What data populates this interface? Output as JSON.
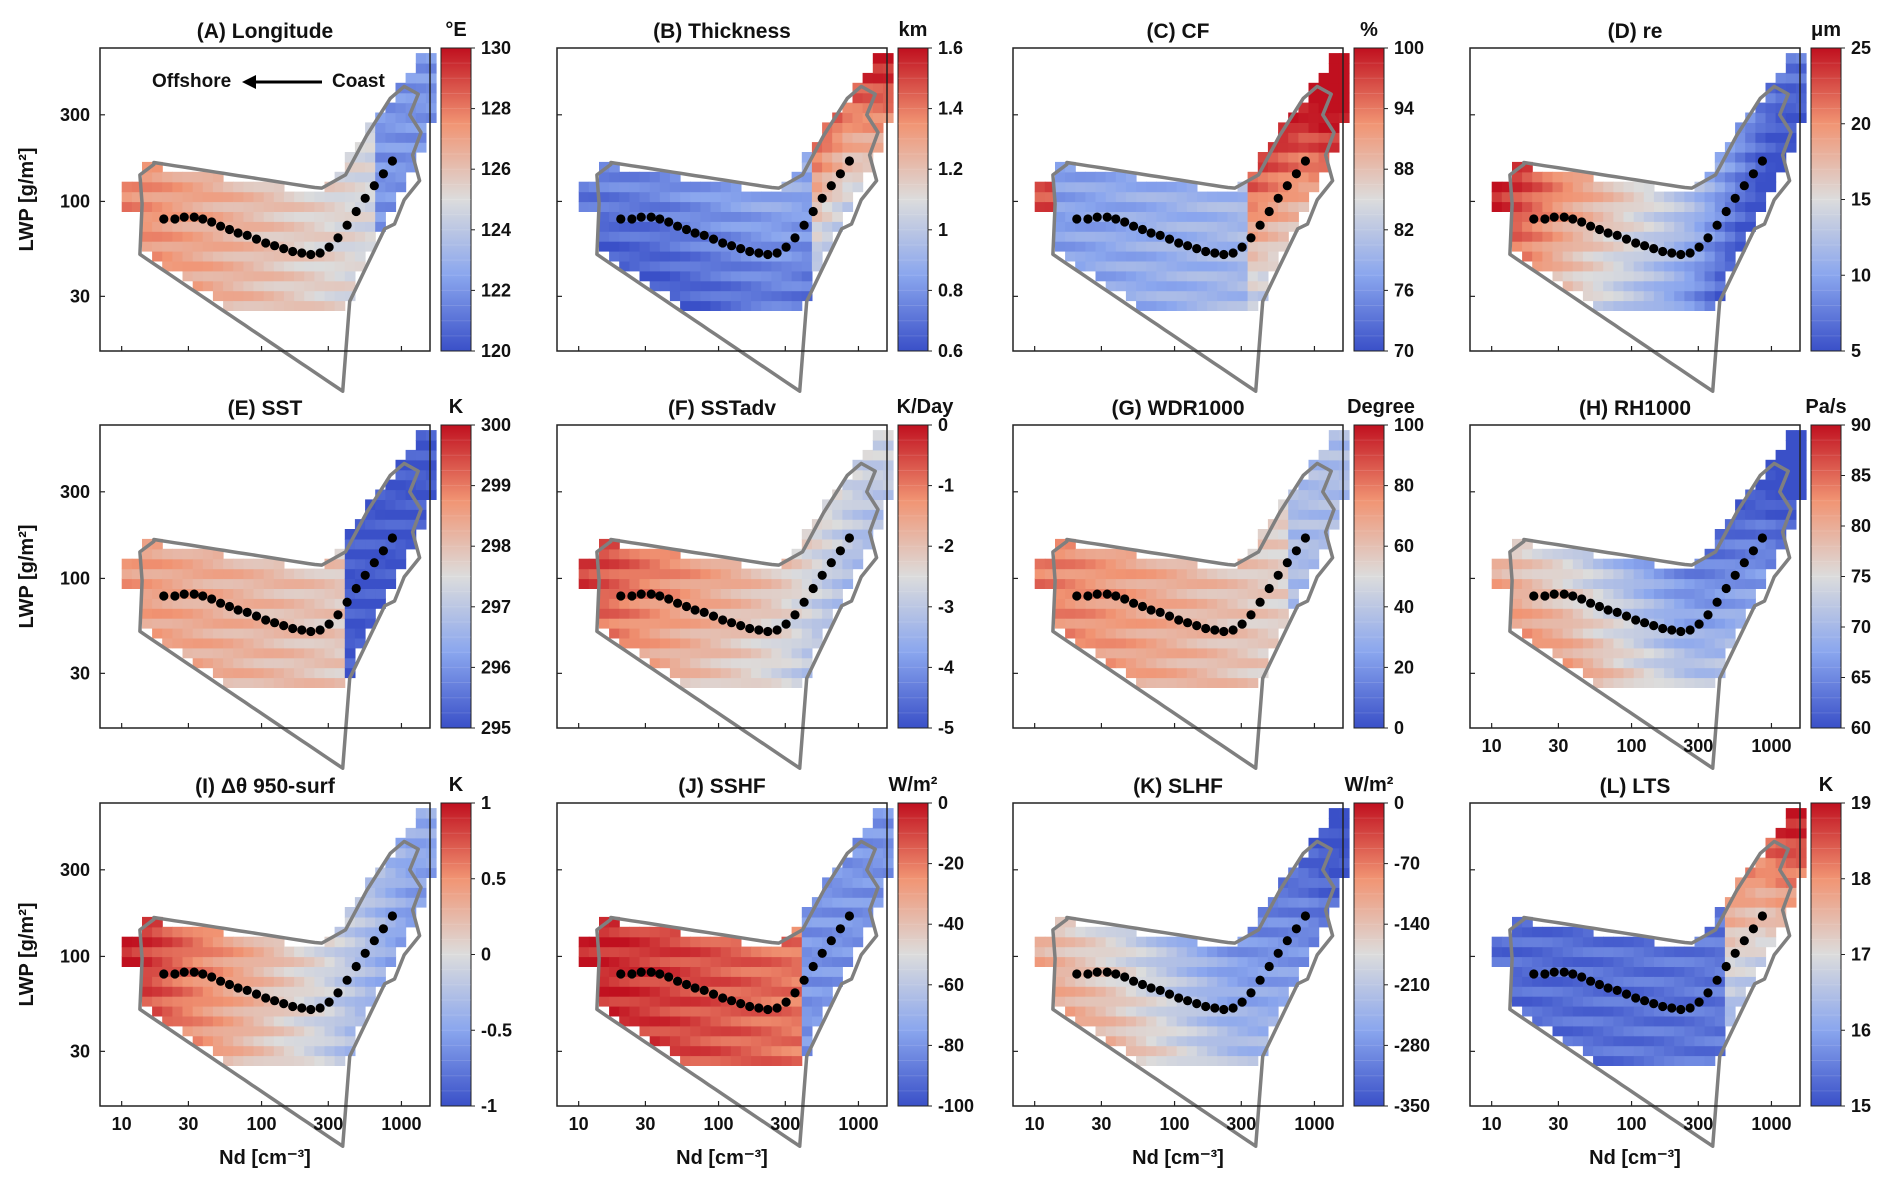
{
  "figure": {
    "ylabel": "LWP [g/m²]",
    "xlabel": "Nd [cm⁻³]",
    "annotation": {
      "left": "Offshore",
      "right": "Coast"
    }
  },
  "axes": {
    "x_scale": "log",
    "y_scale": "log",
    "xlim": [
      7,
      1600
    ],
    "ylim": [
      15,
      700
    ],
    "xticks": [
      10,
      30,
      100,
      300,
      1000
    ],
    "xtick_labels": [
      "10",
      "30",
      "100",
      "300",
      "1000"
    ],
    "yticks": [
      30,
      100,
      300
    ],
    "ytick_labels": [
      "30",
      "100",
      "300"
    ]
  },
  "colormap": {
    "low": "#3a50c8",
    "mid": "#dcdcdc",
    "high": "#c0101f"
  },
  "outline_color": "#7f7f7f",
  "marker_color": "#000000",
  "chart_data": [
    {
      "id": "A",
      "type": "heatmap",
      "title": "(A) Longitude",
      "unit": "°E",
      "clim": [
        120,
        130
      ],
      "cticks": [
        "120",
        "122",
        "124",
        "126",
        "128",
        "130"
      ],
      "mode": "lon"
    },
    {
      "id": "B",
      "type": "heatmap",
      "title": "(B) Thickness",
      "unit": "km",
      "clim": [
        0.6,
        1.6
      ],
      "cticks": [
        "0.6",
        "0.8",
        "1",
        "1.2",
        "1.4",
        "1.6"
      ],
      "mode": "thick"
    },
    {
      "id": "C",
      "type": "heatmap",
      "title": "(C) CF",
      "unit": "%",
      "clim": [
        70,
        100
      ],
      "cticks": [
        "70",
        "76",
        "82",
        "88",
        "94",
        "100"
      ],
      "mode": "cf"
    },
    {
      "id": "D",
      "type": "heatmap",
      "title": "(D) re",
      "unit": "μm",
      "clim": [
        5,
        25
      ],
      "cticks": [
        "5",
        "10",
        "15",
        "20",
        "25"
      ],
      "mode": "re"
    },
    {
      "id": "E",
      "type": "heatmap",
      "title": "(E) SST",
      "unit": "K",
      "clim": [
        295,
        300
      ],
      "cticks": [
        "295",
        "296",
        "297",
        "298",
        "299",
        "300"
      ],
      "mode": "sst"
    },
    {
      "id": "F",
      "type": "heatmap",
      "title": "(F) SSTadv",
      "unit": "K/Day",
      "clim": [
        -5,
        0
      ],
      "cticks": [
        "-5",
        "-4",
        "-3",
        "-2",
        "-1",
        "0"
      ],
      "mode": "adv"
    },
    {
      "id": "G",
      "type": "heatmap",
      "title": "(G) WDR1000",
      "unit": "Degree",
      "clim": [
        0,
        100
      ],
      "cticks": [
        "0",
        "20",
        "40",
        "60",
        "80",
        "100"
      ],
      "mode": "wdr"
    },
    {
      "id": "H",
      "type": "heatmap",
      "title": "(H) RH1000",
      "unit": "Pa/s",
      "clim": [
        60,
        90
      ],
      "cticks": [
        "60",
        "65",
        "70",
        "75",
        "80",
        "85",
        "90"
      ],
      "mode": "rh"
    },
    {
      "id": "I",
      "type": "heatmap",
      "title": "(I) Δθ 950-surf",
      "unit": "K",
      "clim": [
        -1,
        1
      ],
      "cticks": [
        "-1",
        "-0.5",
        "0",
        "0.5",
        "1"
      ],
      "mode": "dtheta"
    },
    {
      "id": "J",
      "type": "heatmap",
      "title": "(J) SSHF",
      "unit": "W/m²",
      "clim": [
        -100,
        0
      ],
      "cticks": [
        "-100",
        "-80",
        "-60",
        "-40",
        "-20",
        "0"
      ],
      "mode": "sshf"
    },
    {
      "id": "K",
      "type": "heatmap",
      "title": "(K) SLHF",
      "unit": "W/m²",
      "clim": [
        -350,
        0
      ],
      "cticks": [
        "-350",
        "-280",
        "-210",
        "-140",
        "-70",
        "0"
      ],
      "mode": "slhf"
    },
    {
      "id": "L",
      "type": "heatmap",
      "title": "(L) LTS",
      "unit": "K",
      "clim": [
        15,
        19
      ],
      "cticks": [
        "15",
        "16",
        "17",
        "18",
        "19"
      ],
      "mode": "lts"
    }
  ],
  "trajectory": {
    "nd": [
      20,
      24,
      28,
      33,
      38,
      44,
      51,
      59,
      68,
      79,
      92,
      107,
      124,
      144,
      167,
      194,
      225,
      262,
      304,
      352,
      409,
      475,
      551,
      640,
      743,
      862
    ],
    "lwp": [
      80,
      80,
      82,
      82,
      80,
      77,
      73,
      70,
      67,
      65,
      62,
      59,
      57,
      55,
      53,
      52,
      51,
      52,
      56,
      63,
      74,
      88,
      104,
      122,
      142,
      167
    ]
  }
}
